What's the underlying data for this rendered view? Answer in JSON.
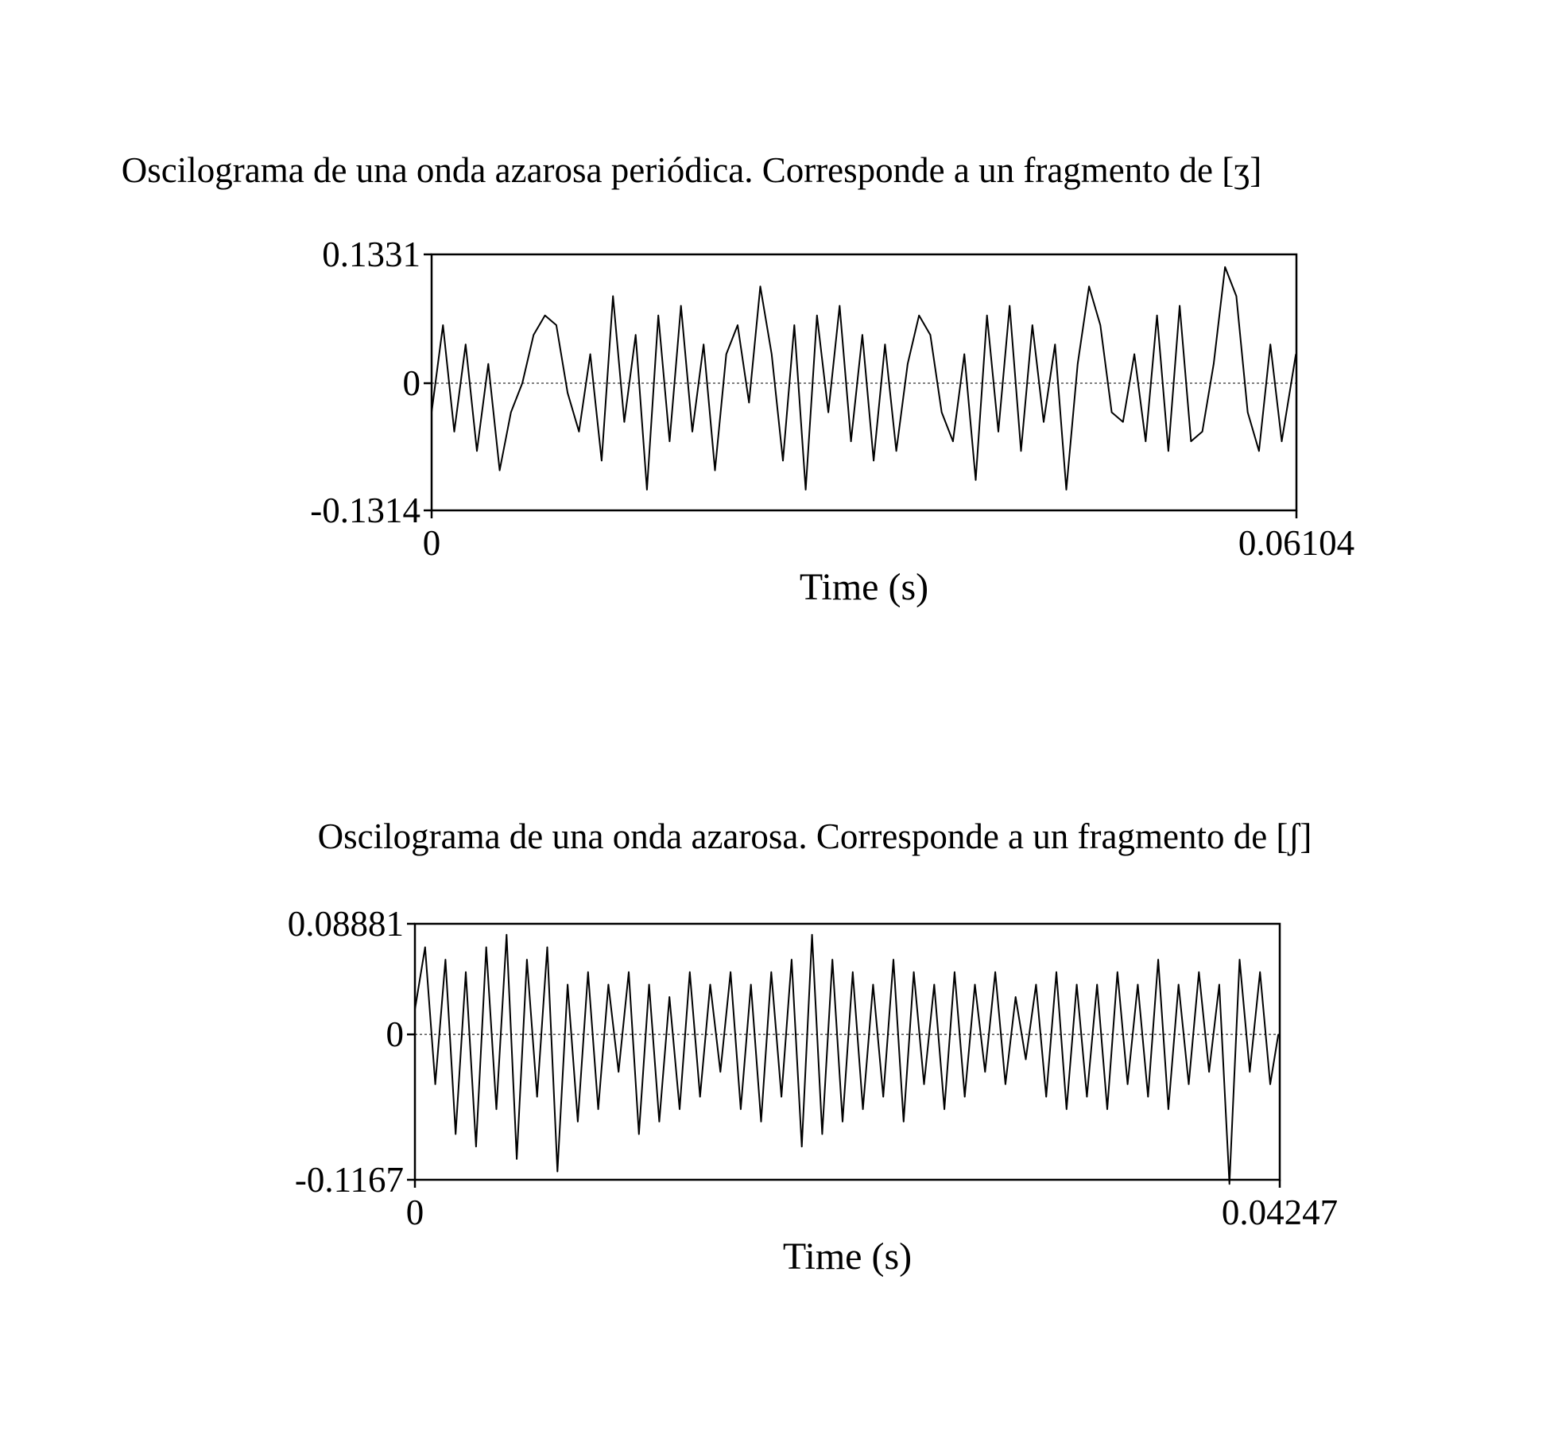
{
  "chart_data": [
    {
      "type": "line",
      "title": "Oscilograma de una onda azarosa periódica. Corresponde a un fragmento de [ʒ]",
      "xlabel": "Time (s)",
      "ylabel": "",
      "xlim": [
        0,
        0.06104
      ],
      "ylim": [
        -0.1314,
        0.1331
      ],
      "x_ticks": [
        "0",
        "0.06104"
      ],
      "y_ticks": [
        "0.1331",
        "0",
        "-0.1314"
      ],
      "zero_line": "dotted",
      "grid": false,
      "series": [
        {
          "x": [
            0,
            0.0008,
            0.0016,
            0.0024,
            0.0032,
            0.004,
            0.0048,
            0.0056,
            0.0064,
            0.0072,
            0.008,
            0.0088,
            0.0096,
            0.0104,
            0.0112,
            0.012,
            0.0128,
            0.0136,
            0.0144,
            0.0152,
            0.016,
            0.0168,
            0.0176,
            0.0184,
            0.0192,
            0.02,
            0.0208,
            0.0216,
            0.0224,
            0.0232,
            0.024,
            0.0248,
            0.0256,
            0.0264,
            0.0272,
            0.028,
            0.0288,
            0.0296,
            0.0304,
            0.0312,
            0.032,
            0.0328,
            0.0336,
            0.0344,
            0.0352,
            0.036,
            0.0368,
            0.0376,
            0.0384,
            0.0392,
            0.04,
            0.0408,
            0.0416,
            0.0424,
            0.0432,
            0.044,
            0.0448,
            0.0456,
            0.0464,
            0.0472,
            0.048,
            0.0488,
            0.0496,
            0.0504,
            0.0512,
            0.052,
            0.0528,
            0.0536,
            0.0544,
            0.0552,
            0.056,
            0.0568,
            0.0576,
            0.0584,
            0.0592,
            0.06,
            0.061
          ],
          "y": [
            -0.03,
            0.06,
            -0.05,
            0.04,
            -0.07,
            0.02,
            -0.09,
            -0.03,
            0.0,
            0.05,
            0.07,
            0.06,
            -0.01,
            -0.05,
            0.03,
            -0.08,
            0.09,
            -0.04,
            0.05,
            -0.11,
            0.07,
            -0.06,
            0.08,
            -0.05,
            0.04,
            -0.09,
            0.03,
            0.06,
            -0.02,
            0.1,
            0.03,
            -0.08,
            0.06,
            -0.11,
            0.07,
            -0.03,
            0.08,
            -0.06,
            0.05,
            -0.08,
            0.04,
            -0.07,
            0.02,
            0.07,
            0.05,
            -0.03,
            -0.06,
            0.03,
            -0.1,
            0.07,
            -0.05,
            0.08,
            -0.07,
            0.06,
            -0.04,
            0.04,
            -0.11,
            0.02,
            0.1,
            0.06,
            -0.03,
            -0.04,
            0.03,
            -0.06,
            0.07,
            -0.07,
            0.08,
            -0.06,
            -0.05,
            0.02,
            0.12,
            0.09,
            -0.03,
            -0.07,
            0.04,
            -0.06,
            0.03
          ]
        }
      ]
    },
    {
      "type": "line",
      "title": "Oscilograma de una onda azarosa. Corresponde a un fragmento de [ʃ]",
      "xlabel": "Time (s)",
      "ylabel": "",
      "xlim": [
        0,
        0.04247
      ],
      "ylim": [
        -0.1167,
        0.08881
      ],
      "x_ticks": [
        "0",
        "0.04247"
      ],
      "y_ticks": [
        "0.08881",
        "0",
        "-0.1167"
      ],
      "zero_line": "dotted",
      "grid": false,
      "series": [
        {
          "x": [
            0,
            0.0005,
            0.001,
            0.0015,
            0.002,
            0.0025,
            0.003,
            0.0035,
            0.004,
            0.0045,
            0.005,
            0.0055,
            0.006,
            0.0065,
            0.007,
            0.0075,
            0.008,
            0.0085,
            0.009,
            0.0095,
            0.01,
            0.0105,
            0.011,
            0.0115,
            0.012,
            0.0125,
            0.013,
            0.0135,
            0.014,
            0.0145,
            0.015,
            0.0155,
            0.016,
            0.0165,
            0.017,
            0.0175,
            0.018,
            0.0185,
            0.019,
            0.0195,
            0.02,
            0.0205,
            0.021,
            0.0215,
            0.022,
            0.0225,
            0.023,
            0.0235,
            0.024,
            0.0245,
            0.025,
            0.0255,
            0.026,
            0.0265,
            0.027,
            0.0275,
            0.028,
            0.0285,
            0.029,
            0.0295,
            0.03,
            0.0305,
            0.031,
            0.0315,
            0.032,
            0.0325,
            0.033,
            0.0335,
            0.034,
            0.0345,
            0.035,
            0.0355,
            0.036,
            0.0365,
            0.037,
            0.0375,
            0.038,
            0.0385,
            0.039,
            0.0395,
            0.04,
            0.0405,
            0.041,
            0.0415,
            0.042,
            0.0424
          ],
          "y": [
            0.02,
            0.07,
            -0.04,
            0.06,
            -0.08,
            0.05,
            -0.09,
            0.07,
            -0.06,
            0.08,
            -0.1,
            0.06,
            -0.05,
            0.07,
            -0.11,
            0.04,
            -0.07,
            0.05,
            -0.06,
            0.04,
            -0.03,
            0.05,
            -0.08,
            0.04,
            -0.07,
            0.03,
            -0.06,
            0.05,
            -0.05,
            0.04,
            -0.03,
            0.05,
            -0.06,
            0.04,
            -0.07,
            0.05,
            -0.05,
            0.06,
            -0.09,
            0.08,
            -0.08,
            0.06,
            -0.07,
            0.05,
            -0.06,
            0.04,
            -0.05,
            0.06,
            -0.07,
            0.05,
            -0.04,
            0.04,
            -0.06,
            0.05,
            -0.05,
            0.04,
            -0.03,
            0.05,
            -0.04,
            0.03,
            -0.02,
            0.04,
            -0.05,
            0.05,
            -0.06,
            0.04,
            -0.05,
            0.04,
            -0.06,
            0.05,
            -0.04,
            0.04,
            -0.05,
            0.06,
            -0.06,
            0.04,
            -0.04,
            0.05,
            -0.03,
            0.04,
            -0.12,
            0.06,
            -0.03,
            0.05,
            -0.04,
            0.0
          ]
        }
      ]
    }
  ]
}
